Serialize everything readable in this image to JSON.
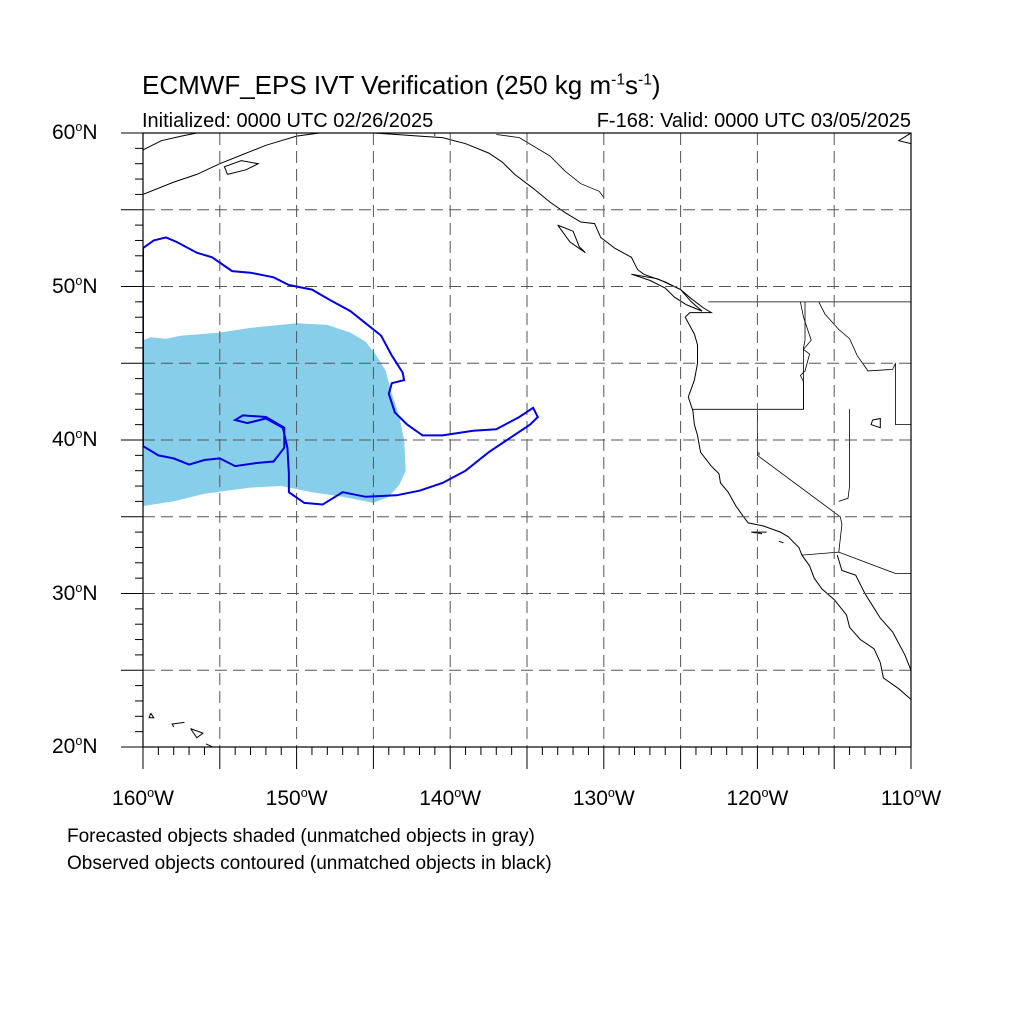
{
  "title": {
    "main": "ECMWF_EPS IVT Verification (250 kg m",
    "sup1": "-1",
    "mid": "s",
    "sup2": "-1",
    "end": ")"
  },
  "subtitle": {
    "left": "Initialized: 0000 UTC 02/26/2025",
    "right": "F-168: Valid: 0000 UTC 03/05/2025"
  },
  "lat_labels": [
    {
      "deg": "60",
      "suffix": "N",
      "lat": 60
    },
    {
      "deg": "50",
      "suffix": "N",
      "lat": 50
    },
    {
      "deg": "40",
      "suffix": "N",
      "lat": 40
    },
    {
      "deg": "30",
      "suffix": "N",
      "lat": 30
    },
    {
      "deg": "20",
      "suffix": "N",
      "lat": 20
    }
  ],
  "lon_labels": [
    {
      "deg": "160",
      "suffix": "W",
      "lon": -160
    },
    {
      "deg": "150",
      "suffix": "W",
      "lon": -150
    },
    {
      "deg": "140",
      "suffix": "W",
      "lon": -140
    },
    {
      "deg": "130",
      "suffix": "W",
      "lon": -130
    },
    {
      "deg": "120",
      "suffix": "W",
      "lon": -120
    },
    {
      "deg": "110",
      "suffix": "W",
      "lon": -110
    }
  ],
  "notes": {
    "line1": "Forecasted objects shaded (unmatched objects in gray)",
    "line2": "Observed objects contoured (unmatched objects in black)"
  },
  "map_extent": {
    "lon_min": -160,
    "lon_max": -110,
    "lat_min": 20,
    "lat_max": 60
  },
  "colors": {
    "forecast_fill": "#87ceeb",
    "observed_contour": "#0000dd",
    "coastline": "#000000",
    "grid": "#555555"
  },
  "forecast_object": [
    [
      -160,
      46.5
    ],
    [
      -159.5,
      46.7
    ],
    [
      -158.5,
      46.6
    ],
    [
      -157.5,
      46.8
    ],
    [
      -155,
      47.0
    ],
    [
      -153,
      47.3
    ],
    [
      -150,
      47.6
    ],
    [
      -148,
      47.5
    ],
    [
      -146.5,
      47.0
    ],
    [
      -145.5,
      46.4
    ],
    [
      -144.8,
      45.5
    ],
    [
      -144.2,
      44.5
    ],
    [
      -143.8,
      43.0
    ],
    [
      -143.3,
      41.5
    ],
    [
      -143,
      40.0
    ],
    [
      -142.9,
      38.0
    ],
    [
      -143.3,
      37.1
    ],
    [
      -144,
      36.3
    ],
    [
      -145,
      35.9
    ],
    [
      -147,
      36.3
    ],
    [
      -149,
      36.6
    ],
    [
      -151,
      37.0
    ],
    [
      -153,
      36.9
    ],
    [
      -156,
      36.5
    ],
    [
      -158,
      36.0
    ],
    [
      -160,
      35.7
    ]
  ],
  "observed_objects": [
    [
      [
        -160,
        52.5
      ],
      [
        -159.3,
        53.0
      ],
      [
        -158.5,
        53.2
      ],
      [
        -157.8,
        52.9
      ],
      [
        -156.5,
        52.2
      ],
      [
        -155.5,
        51.9
      ],
      [
        -154.2,
        51.0
      ],
      [
        -153,
        50.9
      ],
      [
        -151.5,
        50.6
      ],
      [
        -150.5,
        50.1
      ],
      [
        -149,
        49.8
      ],
      [
        -147.8,
        49.1
      ],
      [
        -146.5,
        48.4
      ],
      [
        -145.5,
        47.6
      ],
      [
        -144.5,
        46.8
      ],
      [
        -143.8,
        45.5
      ],
      [
        -143.1,
        44.4
      ],
      [
        -143.0,
        43.9
      ],
      [
        -143.8,
        43.7
      ],
      [
        -144.0,
        43.0
      ],
      [
        -143.6,
        41.8
      ],
      [
        -142.8,
        41.0
      ],
      [
        -141.8,
        40.3
      ],
      [
        -140.5,
        40.3
      ],
      [
        -138.5,
        40.6
      ],
      [
        -137,
        40.7
      ],
      [
        -135.5,
        41.5
      ],
      [
        -134.6,
        42.1
      ],
      [
        -134.3,
        41.5
      ],
      [
        -134.8,
        41.0
      ],
      [
        -136.0,
        40.2
      ],
      [
        -137.5,
        39.2
      ],
      [
        -139,
        38.0
      ],
      [
        -140.5,
        37.2
      ],
      [
        -142,
        36.7
      ],
      [
        -143.5,
        36.4
      ],
      [
        -145.5,
        36.3
      ],
      [
        -147,
        36.6
      ],
      [
        -148.3,
        35.8
      ],
      [
        -149.5,
        35.9
      ],
      [
        -150.5,
        36.6
      ],
      [
        -150.5,
        37.8
      ],
      [
        -150.6,
        39.5
      ],
      [
        -150.9,
        40.8
      ],
      [
        -152.0,
        41.4
      ],
      [
        -153.2,
        41.1
      ],
      [
        -154.0,
        41.3
      ],
      [
        -153.5,
        41.6
      ],
      [
        -152.0,
        41.5
      ],
      [
        -150.8,
        40.8
      ],
      [
        -150.8,
        39.5
      ],
      [
        -151.5,
        38.6
      ],
      [
        -152.6,
        38.5
      ],
      [
        -154,
        38.3
      ],
      [
        -155,
        38.8
      ],
      [
        -156,
        38.7
      ],
      [
        -157.0,
        38.4
      ],
      [
        -158.0,
        38.8
      ],
      [
        -159.0,
        39.0
      ],
      [
        -160,
        39.6
      ]
    ]
  ],
  "coastlines": [
    [
      [
        -160,
        56.0
      ],
      [
        -158,
        56.8
      ],
      [
        -156.5,
        57.3
      ],
      [
        -155.0,
        58.0
      ],
      [
        -153.5,
        58.6
      ],
      [
        -152,
        59.2
      ],
      [
        -151,
        59.5
      ],
      [
        -150,
        59.8
      ],
      [
        -148.5,
        60
      ]
    ],
    [
      [
        -160,
        58.9
      ],
      [
        -158.8,
        59.5
      ],
      [
        -157.5,
        59.8
      ],
      [
        -156.5,
        60
      ]
    ],
    [
      [
        -154.5,
        57.3
      ],
      [
        -153.3,
        57.6
      ],
      [
        -152.5,
        58.0
      ],
      [
        -153.6,
        58.2
      ],
      [
        -154.7,
        57.8
      ],
      [
        -154.5,
        57.3
      ]
    ],
    [
      [
        -145,
        60
      ],
      [
        -143.5,
        59.9
      ],
      [
        -142,
        59.8
      ],
      [
        -140.5,
        59.7
      ],
      [
        -139,
        59.3
      ],
      [
        -137.5,
        58.7
      ],
      [
        -136.6,
        58.1
      ],
      [
        -135.8,
        57.3
      ],
      [
        -134.6,
        56.4
      ],
      [
        -133.5,
        55.5
      ],
      [
        -132.5,
        54.8
      ],
      [
        -131.5,
        54.2
      ],
      [
        -130.6,
        54.1
      ],
      [
        -130.2,
        53.2
      ],
      [
        -129.3,
        52.5
      ],
      [
        -128.2,
        51.9
      ],
      [
        -127.8,
        51.1
      ],
      [
        -127.4,
        50.8
      ],
      [
        -126,
        50.3
      ],
      [
        -125,
        49.8
      ],
      [
        -124.3,
        49.2
      ],
      [
        -123.5,
        48.6
      ],
      [
        -123.0,
        48.3
      ],
      [
        -124.4,
        48.3
      ],
      [
        -124.7,
        48.0
      ],
      [
        -124.1,
        46.9
      ],
      [
        -123.9,
        46.2
      ],
      [
        -123.9,
        45.0
      ],
      [
        -124.1,
        43.9
      ],
      [
        -124.5,
        42.8
      ],
      [
        -124.2,
        41.9
      ],
      [
        -124.1,
        41.0
      ],
      [
        -123.9,
        40.3
      ],
      [
        -123.7,
        39.2
      ],
      [
        -123.0,
        38.3
      ],
      [
        -122.5,
        37.8
      ],
      [
        -122.4,
        37.2
      ],
      [
        -121.9,
        36.6
      ],
      [
        -121.4,
        35.7
      ],
      [
        -120.9,
        35.0
      ],
      [
        -120.6,
        34.6
      ],
      [
        -119.6,
        34.4
      ],
      [
        -118.5,
        34.0
      ],
      [
        -118.0,
        33.7
      ],
      [
        -117.3,
        33.0
      ],
      [
        -117.1,
        32.5
      ],
      [
        -116.6,
        31.8
      ],
      [
        -116.3,
        31.0
      ],
      [
        -115.8,
        30.3
      ],
      [
        -115.0,
        29.6
      ],
      [
        -114.2,
        28.6
      ],
      [
        -114.0,
        27.8
      ],
      [
        -113.3,
        27.0
      ],
      [
        -112.4,
        26.4
      ],
      [
        -112.0,
        25.5
      ],
      [
        -111.8,
        24.5
      ],
      [
        -110.8,
        23.8
      ],
      [
        -110,
        23.1
      ]
    ],
    [
      [
        -114.8,
        32.5
      ],
      [
        -114.5,
        31.5
      ],
      [
        -113.6,
        31.2
      ],
      [
        -113.0,
        30.0
      ],
      [
        -112.5,
        29.2
      ],
      [
        -112.0,
        28.4
      ],
      [
        -111.2,
        27.5
      ],
      [
        -110.4,
        26.0
      ],
      [
        -110,
        25.0
      ]
    ],
    [
      [
        -110,
        60
      ],
      [
        -110.8,
        59.5
      ],
      [
        -110,
        59.3
      ]
    ],
    [
      [
        -128.2,
        50.8
      ],
      [
        -127,
        50.4
      ],
      [
        -126,
        49.9
      ],
      [
        -125.4,
        49.3
      ],
      [
        -124.6,
        48.8
      ],
      [
        -123.6,
        48.4
      ],
      [
        -124.3,
        49.0
      ],
      [
        -125.0,
        49.8
      ],
      [
        -126.5,
        50.5
      ],
      [
        -128.2,
        50.8
      ]
    ],
    [
      [
        -133.0,
        54.0
      ],
      [
        -132.0,
        53.6
      ],
      [
        -131.6,
        52.6
      ],
      [
        -131.2,
        52.2
      ],
      [
        -132.2,
        52.9
      ],
      [
        -133.0,
        54.0
      ]
    ],
    [
      [
        -119.4,
        34.0
      ],
      [
        -120.4,
        34.0
      ],
      [
        -119.7,
        33.9
      ]
    ],
    [
      [
        -118.6,
        33.4
      ],
      [
        -118.3,
        33.3
      ]
    ],
    [
      [
        -157.3,
        21.6
      ],
      [
        -158.1,
        21.5
      ],
      [
        -158.0,
        21.3
      ]
    ],
    [
      [
        -159.5,
        22.2
      ],
      [
        -159.3,
        21.9
      ],
      [
        -159.6,
        21.9
      ],
      [
        -159.5,
        22.2
      ]
    ],
    [
      [
        -156.9,
        21.2
      ],
      [
        -156.1,
        20.9
      ],
      [
        -156.5,
        20.6
      ],
      [
        -156.9,
        21.2
      ]
    ],
    [
      [
        -155.9,
        20.2
      ],
      [
        -155.0,
        19.8
      ],
      [
        -154.8,
        19.5
      ]
    ]
  ],
  "borders": [
    [
      [
        -141,
        60
      ],
      [
        -141,
        59.8
      ]
    ],
    [
      [
        -130.0,
        55.8
      ],
      [
        -130.3,
        56.2
      ],
      [
        -131.5,
        56.7
      ],
      [
        -132.5,
        57.5
      ],
      [
        -133.5,
        58.5
      ],
      [
        -135.5,
        59.7
      ],
      [
        -137.0,
        59.9
      ]
    ],
    [
      [
        -123.2,
        49.0
      ],
      [
        -110,
        49.0
      ]
    ],
    [
      [
        -124.2,
        42.0
      ],
      [
        -117.0,
        42.0
      ],
      [
        -117.0,
        46.0
      ],
      [
        -116.9,
        46.5
      ],
      [
        -116.9,
        49.0
      ]
    ],
    [
      [
        -117.2,
        49.0
      ],
      [
        -117.0,
        48.0
      ],
      [
        -116.5,
        46.5
      ],
      [
        -117.0,
        45.9
      ],
      [
        -116.6,
        45.6
      ],
      [
        -116.9,
        44.5
      ],
      [
        -117.2,
        44.2
      ],
      [
        -117.0,
        43.8
      ],
      [
        -117.0,
        42.0
      ]
    ],
    [
      [
        -120.0,
        42.0
      ],
      [
        -120.0,
        39.0
      ],
      [
        -114.6,
        35.0
      ],
      [
        -114.5,
        34.5
      ],
      [
        -114.7,
        32.7
      ]
    ],
    [
      [
        -114.0,
        42.0
      ],
      [
        -114.0,
        37.0
      ],
      [
        -114.1,
        36.2
      ],
      [
        -114.7,
        36.0
      ]
    ],
    [
      [
        -111.0,
        45.0
      ],
      [
        -111.0,
        41.0
      ],
      [
        -110,
        41.0
      ]
    ],
    [
      [
        -117.1,
        32.5
      ],
      [
        -114.7,
        32.7
      ],
      [
        -111.0,
        31.3
      ],
      [
        -110,
        31.3
      ]
    ],
    [
      [
        -116.0,
        49.0
      ],
      [
        -115.6,
        48.2
      ],
      [
        -114.7,
        47.2
      ],
      [
        -114.0,
        46.6
      ],
      [
        -113.5,
        45.5
      ],
      [
        -112.8,
        44.5
      ],
      [
        -111.2,
        44.6
      ],
      [
        -111.0,
        45.0
      ]
    ]
  ],
  "lakes": [
    [
      [
        -112.5,
        41.3
      ],
      [
        -112.0,
        41.4
      ],
      [
        -112.0,
        40.8
      ],
      [
        -112.6,
        41.0
      ],
      [
        -112.5,
        41.3
      ]
    ],
    [
      [
        -119.9,
        39.2
      ],
      [
        -119.9,
        39.0
      ]
    ]
  ]
}
